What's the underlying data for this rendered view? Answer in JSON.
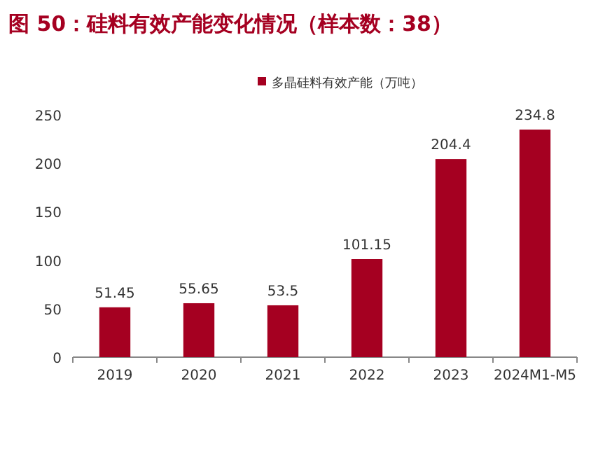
{
  "chart_data": {
    "type": "bar",
    "title": "图 50：硅料有效产能变化情况（样本数：38）",
    "categories": [
      "2019",
      "2020",
      "2021",
      "2022",
      "2023",
      "2024M1-M5"
    ],
    "series": [
      {
        "name": "多晶硅料有效产能（万吨）",
        "color": "#a50021",
        "values": [
          51.45,
          55.65,
          53.5,
          101.15,
          204.4,
          234.8
        ]
      }
    ],
    "ylim": [
      0,
      250
    ],
    "yticks": [
      0,
      50,
      100,
      150,
      200,
      250
    ],
    "data_labels": true,
    "legend": "top"
  }
}
